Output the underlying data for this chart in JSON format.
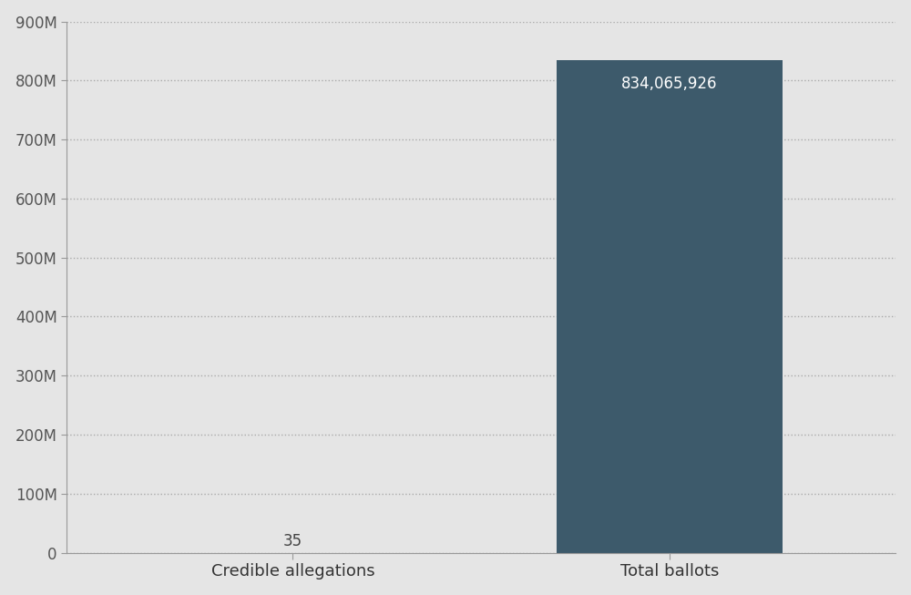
{
  "categories": [
    "Credible allegations",
    "Total ballots"
  ],
  "values": [
    35,
    834065926
  ],
  "bar_color": "#3d5a6b",
  "background_color": "#e5e5e5",
  "plot_bg_color": "#e5e5e5",
  "ylim": [
    0,
    900000000
  ],
  "yticks": [
    0,
    100000000,
    200000000,
    300000000,
    400000000,
    500000000,
    600000000,
    700000000,
    800000000,
    900000000
  ],
  "ytick_labels": [
    "0",
    "100M",
    "200M",
    "300M",
    "400M",
    "500M",
    "600M",
    "700M",
    "800M",
    "900M"
  ],
  "bar_label_credible": "35",
  "bar_label_total": "834,065,926",
  "bar_label_color_credible": "#444444",
  "bar_label_color_total": "#ffffff",
  "label_fontsize": 12,
  "tick_fontsize": 12,
  "category_fontsize": 13,
  "grid_color": "#aaaaaa",
  "grid_linestyle": "dotted",
  "grid_linewidth": 1.0,
  "bar_width": 0.6,
  "xlim": [
    -0.6,
    1.6
  ]
}
